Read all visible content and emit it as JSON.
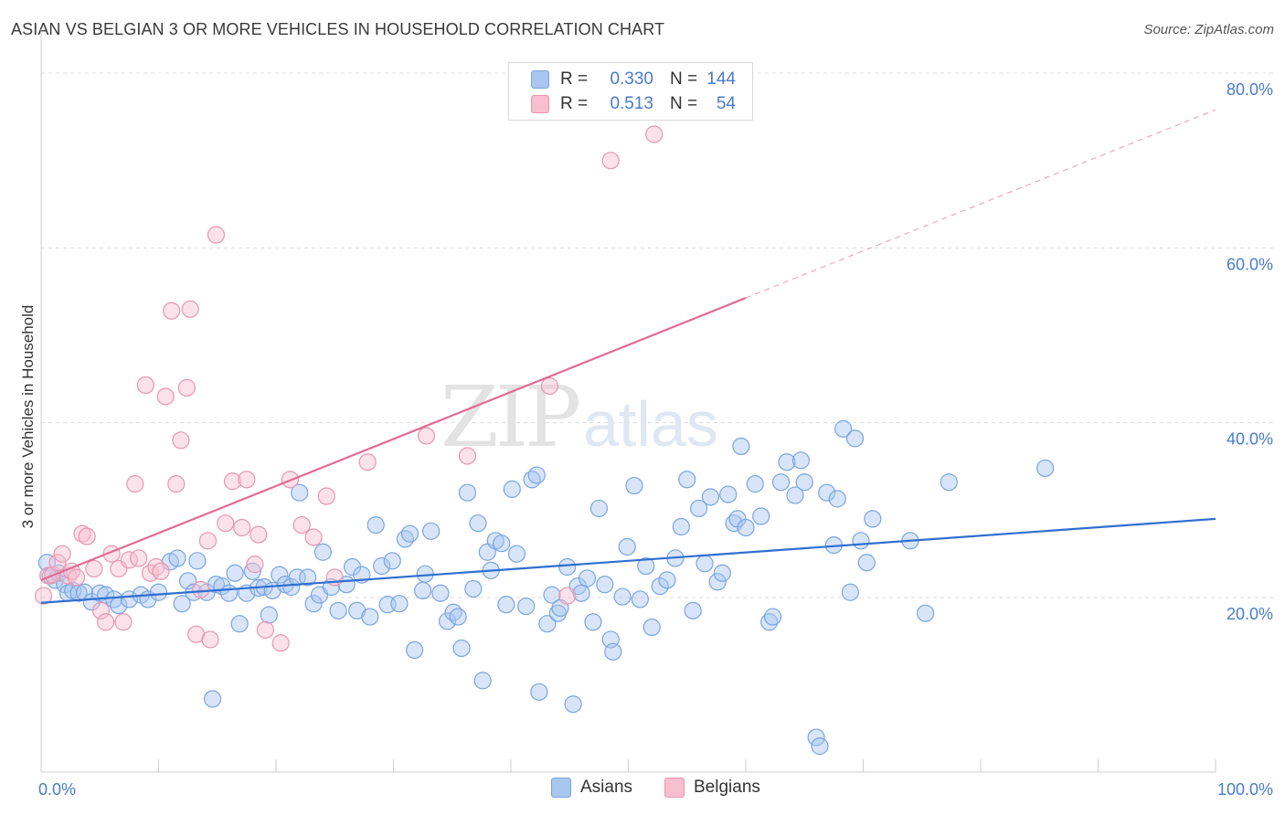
{
  "title": "ASIAN VS BELGIAN 3 OR MORE VEHICLES IN HOUSEHOLD CORRELATION CHART",
  "source": "Source: ZipAtlas.com",
  "watermark": {
    "part1": "ZIP",
    "part2": "atlas"
  },
  "legend": {
    "rows": [
      {
        "r_label": "R =",
        "r_value": "0.330",
        "n_label": "N =",
        "n_value": "144",
        "color": "#a9c6ef",
        "border": "#7aa5e0"
      },
      {
        "r_label": "R =",
        "r_value": "0.513",
        "n_label": "N =",
        "n_value": "54",
        "color": "#f7bfd0",
        "border": "#e896b0"
      }
    ]
  },
  "bottom_legend": [
    {
      "label": "Asians",
      "color": "#a9c6ef",
      "border": "#7aa5e0"
    },
    {
      "label": "Belgians",
      "color": "#f7bfd0",
      "border": "#e896b0"
    }
  ],
  "chart_data": {
    "type": "scatter",
    "title": "ASIAN VS BELGIAN 3 OR MORE VEHICLES IN HOUSEHOLD CORRELATION CHART",
    "xlabel": "",
    "ylabel": "3 or more Vehicles in Household",
    "xlim": [
      0,
      100
    ],
    "ylim": [
      0,
      85
    ],
    "x_tick_labels": [
      "0.0%",
      "100.0%"
    ],
    "y_ticks": [
      20,
      40,
      60,
      80
    ],
    "y_tick_labels": [
      "20.0%",
      "40.0%",
      "60.0%",
      "80.0%"
    ],
    "grid": true,
    "legend_position": "top-center",
    "series": [
      {
        "name": "Asians",
        "color": "#7aa5e0",
        "fill": "#a9c6ef",
        "r": 0.33,
        "n": 144,
        "trend": {
          "x": [
            0,
            100
          ],
          "y": [
            19.4,
            29.0
          ],
          "dashed_from": null
        },
        "points": [
          [
            0.5,
            24.0
          ],
          [
            0.8,
            22.5
          ],
          [
            1.2,
            22.0
          ],
          [
            1.5,
            22.8
          ],
          [
            2.0,
            21.5
          ],
          [
            2.3,
            20.5
          ],
          [
            2.7,
            20.8
          ],
          [
            3.2,
            20.5
          ],
          [
            3.7,
            20.6
          ],
          [
            4.3,
            19.5
          ],
          [
            5.0,
            20.5
          ],
          [
            5.5,
            20.3
          ],
          [
            6.2,
            19.8
          ],
          [
            6.6,
            19.1
          ],
          [
            7.5,
            19.8
          ],
          [
            8.5,
            20.3
          ],
          [
            9.1,
            19.8
          ],
          [
            10.0,
            20.6
          ],
          [
            11.0,
            24.1
          ],
          [
            11.6,
            24.5
          ],
          [
            12.0,
            19.3
          ],
          [
            12.5,
            21.9
          ],
          [
            13.0,
            20.6
          ],
          [
            13.3,
            24.2
          ],
          [
            14.1,
            20.6
          ],
          [
            14.6,
            8.4
          ],
          [
            14.9,
            21.5
          ],
          [
            15.4,
            21.3
          ],
          [
            16.0,
            20.5
          ],
          [
            16.5,
            22.8
          ],
          [
            16.9,
            17.0
          ],
          [
            17.5,
            20.5
          ],
          [
            18.0,
            23.0
          ],
          [
            18.5,
            21.1
          ],
          [
            19.0,
            21.2
          ],
          [
            19.4,
            18.0
          ],
          [
            19.7,
            20.8
          ],
          [
            20.3,
            22.6
          ],
          [
            20.8,
            21.5
          ],
          [
            21.3,
            21.2
          ],
          [
            21.8,
            22.3
          ],
          [
            22.0,
            32.0
          ],
          [
            22.7,
            22.3
          ],
          [
            23.2,
            19.3
          ],
          [
            23.7,
            20.3
          ],
          [
            24.0,
            25.2
          ],
          [
            24.7,
            21.2
          ],
          [
            25.3,
            18.5
          ],
          [
            26.0,
            21.5
          ],
          [
            26.5,
            23.5
          ],
          [
            26.9,
            18.5
          ],
          [
            27.3,
            22.6
          ],
          [
            28.0,
            17.8
          ],
          [
            28.5,
            28.3
          ],
          [
            29.0,
            23.6
          ],
          [
            29.5,
            19.2
          ],
          [
            29.9,
            24.2
          ],
          [
            30.5,
            19.3
          ],
          [
            31.0,
            26.7
          ],
          [
            31.4,
            27.3
          ],
          [
            31.8,
            14.0
          ],
          [
            32.5,
            20.8
          ],
          [
            32.7,
            22.7
          ],
          [
            33.2,
            27.6
          ],
          [
            34.0,
            20.5
          ],
          [
            34.6,
            17.3
          ],
          [
            35.1,
            18.3
          ],
          [
            35.5,
            17.8
          ],
          [
            35.8,
            14.2
          ],
          [
            36.3,
            32.0
          ],
          [
            36.8,
            21.0
          ],
          [
            37.2,
            28.5
          ],
          [
            37.6,
            10.5
          ],
          [
            38.0,
            25.2
          ],
          [
            38.3,
            23.1
          ],
          [
            38.7,
            26.5
          ],
          [
            39.2,
            26.2
          ],
          [
            39.6,
            19.2
          ],
          [
            40.1,
            32.4
          ],
          [
            40.5,
            25.0
          ],
          [
            41.3,
            19.0
          ],
          [
            41.8,
            33.5
          ],
          [
            42.2,
            34.0
          ],
          [
            42.4,
            9.2
          ],
          [
            43.1,
            17.0
          ],
          [
            43.5,
            20.3
          ],
          [
            44.0,
            18.2
          ],
          [
            44.2,
            18.8
          ],
          [
            44.8,
            23.5
          ],
          [
            45.3,
            7.8
          ],
          [
            45.7,
            21.3
          ],
          [
            46.0,
            20.5
          ],
          [
            46.5,
            22.2
          ],
          [
            47.0,
            17.2
          ],
          [
            47.5,
            30.2
          ],
          [
            48.0,
            21.5
          ],
          [
            48.5,
            15.2
          ],
          [
            48.7,
            13.8
          ],
          [
            49.5,
            20.1
          ],
          [
            49.9,
            25.8
          ],
          [
            50.5,
            32.8
          ],
          [
            51.0,
            19.8
          ],
          [
            51.5,
            23.6
          ],
          [
            52.0,
            16.6
          ],
          [
            52.7,
            21.3
          ],
          [
            53.3,
            22.0
          ],
          [
            54.0,
            24.5
          ],
          [
            54.5,
            28.1
          ],
          [
            55.0,
            33.5
          ],
          [
            55.5,
            18.5
          ],
          [
            56.0,
            30.2
          ],
          [
            56.5,
            23.9
          ],
          [
            57.0,
            31.5
          ],
          [
            57.6,
            21.8
          ],
          [
            58.0,
            22.8
          ],
          [
            58.5,
            31.8
          ],
          [
            59.0,
            28.5
          ],
          [
            59.3,
            29.0
          ],
          [
            59.6,
            37.3
          ],
          [
            60.0,
            28.0
          ],
          [
            60.8,
            33.0
          ],
          [
            61.3,
            29.3
          ],
          [
            62.0,
            17.2
          ],
          [
            62.3,
            17.8
          ],
          [
            63.0,
            33.2
          ],
          [
            63.5,
            35.5
          ],
          [
            64.2,
            31.7
          ],
          [
            64.7,
            35.7
          ],
          [
            65.0,
            33.2
          ],
          [
            66.0,
            4.0
          ],
          [
            66.3,
            3.0
          ],
          [
            66.9,
            32.0
          ],
          [
            67.5,
            26.0
          ],
          [
            67.8,
            31.3
          ],
          [
            68.3,
            39.3
          ],
          [
            68.9,
            20.6
          ],
          [
            69.3,
            38.2
          ],
          [
            69.8,
            26.5
          ],
          [
            70.3,
            24.0
          ],
          [
            70.8,
            29.0
          ],
          [
            74.0,
            26.5
          ],
          [
            75.3,
            18.2
          ],
          [
            77.3,
            33.2
          ],
          [
            85.5,
            34.8
          ]
        ]
      },
      {
        "name": "Belgians",
        "color": "#e896b0",
        "fill": "#f7bfd0",
        "r": 0.513,
        "n": 54,
        "trend": {
          "x": [
            0,
            100
          ],
          "y": [
            22.0,
            75.8
          ],
          "dashed_from": 60
        },
        "points": [
          [
            0.2,
            20.2
          ],
          [
            0.6,
            22.5
          ],
          [
            1.0,
            22.6
          ],
          [
            1.4,
            24.0
          ],
          [
            1.8,
            25.0
          ],
          [
            2.3,
            22.5
          ],
          [
            2.6,
            23.0
          ],
          [
            3.0,
            22.3
          ],
          [
            3.5,
            27.3
          ],
          [
            3.9,
            27.0
          ],
          [
            4.5,
            23.3
          ],
          [
            5.1,
            18.5
          ],
          [
            5.5,
            17.2
          ],
          [
            6.0,
            25.0
          ],
          [
            6.6,
            23.3
          ],
          [
            7.0,
            17.2
          ],
          [
            7.5,
            24.3
          ],
          [
            8.0,
            33.0
          ],
          [
            8.3,
            24.5
          ],
          [
            8.9,
            44.3
          ],
          [
            9.3,
            22.8
          ],
          [
            9.8,
            23.5
          ],
          [
            10.2,
            23.0
          ],
          [
            10.6,
            43.0
          ],
          [
            11.1,
            52.8
          ],
          [
            11.5,
            33.0
          ],
          [
            11.9,
            38.0
          ],
          [
            12.4,
            44.0
          ],
          [
            12.7,
            53.0
          ],
          [
            13.2,
            15.8
          ],
          [
            13.6,
            20.9
          ],
          [
            14.2,
            26.5
          ],
          [
            14.4,
            15.2
          ],
          [
            14.9,
            61.5
          ],
          [
            15.7,
            28.5
          ],
          [
            16.3,
            33.3
          ],
          [
            17.1,
            28.0
          ],
          [
            17.5,
            33.5
          ],
          [
            18.2,
            23.8
          ],
          [
            18.5,
            27.2
          ],
          [
            19.1,
            16.3
          ],
          [
            20.4,
            14.8
          ],
          [
            21.2,
            33.5
          ],
          [
            22.2,
            28.3
          ],
          [
            23.2,
            26.9
          ],
          [
            24.3,
            31.6
          ],
          [
            25.0,
            22.3
          ],
          [
            27.8,
            35.5
          ],
          [
            32.8,
            38.5
          ],
          [
            36.3,
            36.2
          ],
          [
            43.3,
            44.2
          ],
          [
            44.8,
            20.2
          ],
          [
            48.5,
            70.0
          ],
          [
            52.2,
            73.0
          ]
        ]
      }
    ]
  }
}
